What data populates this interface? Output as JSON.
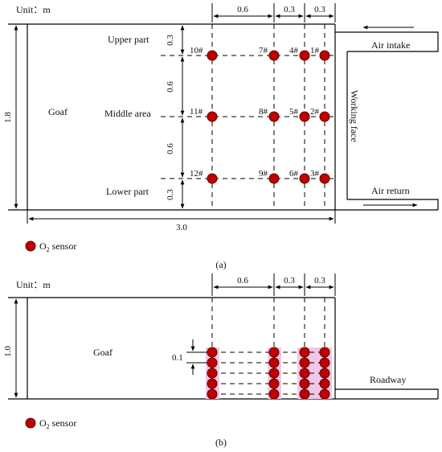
{
  "panel_a": {
    "unit": "Unit：m",
    "dim_top": [
      "0.6",
      "0.3",
      "0.3"
    ],
    "dim_left": "1.8",
    "dim_bottom": "3.0",
    "dim_right_inner": [
      "0.3",
      "0.6",
      "0.6",
      "0.3"
    ],
    "goaf": "Goaf",
    "rows": [
      "Upper part",
      "Middle area",
      "Lower part"
    ],
    "sensor_labels": [
      [
        "10#",
        "7#",
        "4#",
        "1#"
      ],
      [
        "11#",
        "8#",
        "5#",
        "2#"
      ],
      [
        "12#",
        "9#",
        "6#",
        "3#"
      ]
    ],
    "air_intake": "Air intake",
    "air_return": "Air return",
    "working_face": "Working face",
    "legend_prefix": "O",
    "legend_sub": "2",
    "legend_suffix": " sensor",
    "caption": "(a)"
  },
  "panel_b": {
    "unit": "Unit：m",
    "dim_top": [
      "0.6",
      "0.3",
      "0.3"
    ],
    "dim_left": "1.0",
    "dim_spacing": "0.1",
    "goaf": "Goaf",
    "roadway": "Roadway",
    "legend_prefix": "O",
    "legend_sub": "2",
    "legend_suffix": " sensor",
    "caption": "(b)"
  },
  "colors": {
    "sensor_fill": "#c00000",
    "sensor_stroke": "#5a0000",
    "highlight": "#f2c6e6",
    "line": "#000000"
  }
}
